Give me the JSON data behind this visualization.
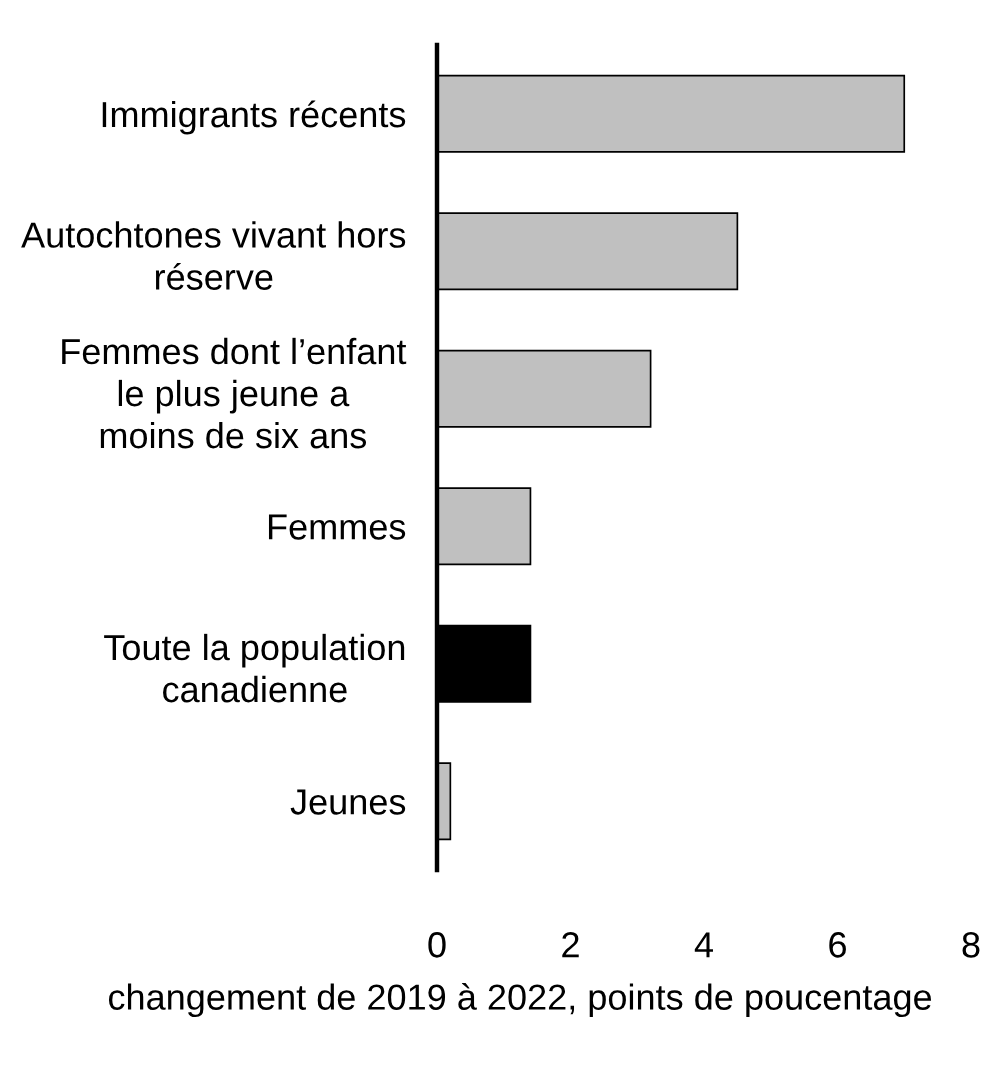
{
  "chart_data": {
    "type": "bar",
    "orientation": "horizontal",
    "categories": [
      "Immigrants récents",
      "Autochtones vivant hors\nréserve",
      "Femmes dont l’enfant\nle plus jeune a\nmoins de six ans",
      "Femmes",
      "Toute la population\ncanadienne",
      "Jeunes"
    ],
    "values": [
      7.0,
      4.5,
      3.2,
      1.4,
      1.4,
      0.2
    ],
    "colors": [
      "#c0c0c0",
      "#c0c0c0",
      "#c0c0c0",
      "#c0c0c0",
      "#000000",
      "#c0c0c0"
    ],
    "xlabel": "changement de 2019 à 2022, points de poucentage",
    "xlim": [
      0,
      8
    ],
    "xticks": [
      0,
      2,
      4,
      6,
      8
    ],
    "grid": false
  }
}
